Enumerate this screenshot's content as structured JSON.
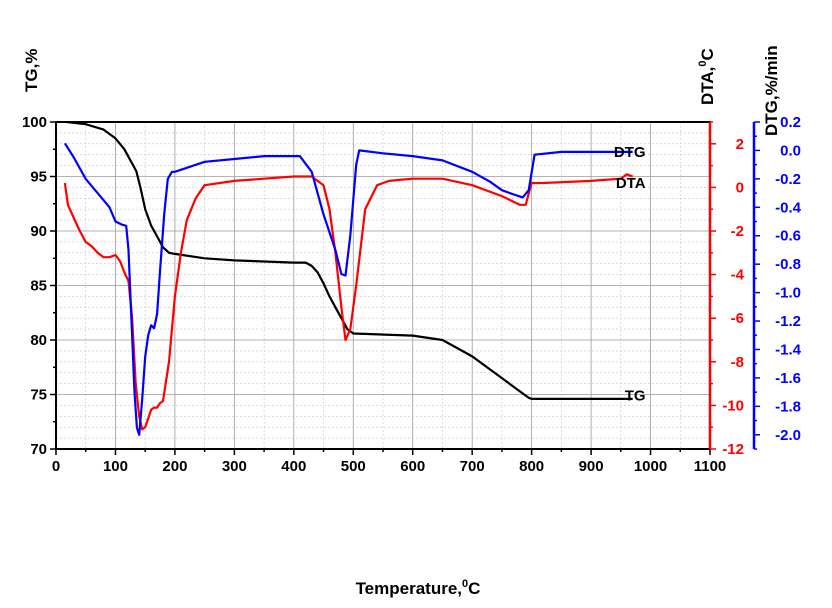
{
  "chart_data": {
    "type": "line",
    "xlabel": "Temperature,",
    "xlabel_sup": "0",
    "xlabel_unit": "C",
    "xlim": [
      0,
      1100
    ],
    "x_ticks": [
      0,
      100,
      200,
      300,
      400,
      500,
      600,
      700,
      800,
      900,
      1000,
      1100
    ],
    "grid": true,
    "axes": {
      "tg": {
        "label": "TG,%",
        "ylim": [
          70,
          100
        ],
        "ticks": [
          70,
          75,
          80,
          85,
          90,
          95,
          100
        ],
        "color": "#000000"
      },
      "dta": {
        "label": "DTA,",
        "label_sup": "0",
        "label_unit": "C",
        "ylim": [
          -12,
          3
        ],
        "ticks": [
          -12,
          -10,
          -8,
          -6,
          -4,
          -2,
          0,
          2
        ],
        "color": "#ff0000"
      },
      "dtg": {
        "label": "DTG,%/min",
        "ylim": [
          -2.1,
          0.2
        ],
        "ticks": [
          -2.0,
          -1.8,
          -1.6,
          -1.4,
          -1.2,
          -1.0,
          -0.8,
          -0.6,
          -0.4,
          -0.2,
          0.0,
          0.2
        ],
        "tick_labels": [
          "-2.0",
          "-1.8",
          "-1.6",
          "-1.4",
          "-1.2",
          "-1.0",
          "-0.8",
          "-0.6",
          "-0.4",
          "-0.2",
          "0.0",
          "0.2"
        ],
        "color": "#0000ff"
      }
    },
    "series": [
      {
        "name": "TG",
        "axis": "tg",
        "color": "#000000",
        "x": [
          18,
          50,
          80,
          100,
          115,
          125,
          135,
          142,
          150,
          160,
          170,
          180,
          190,
          200,
          250,
          300,
          350,
          400,
          420,
          430,
          440,
          450,
          460,
          470,
          480,
          490,
          500,
          600,
          650,
          700,
          750,
          780,
          795,
          800,
          970
        ],
        "values": [
          100,
          99.8,
          99.3,
          98.5,
          97.5,
          96.5,
          95.5,
          94,
          92,
          90.5,
          89.5,
          88.5,
          88,
          87.9,
          87.5,
          87.3,
          87.2,
          87.1,
          87.1,
          86.8,
          86.2,
          85.2,
          84,
          83,
          82,
          81,
          80.6,
          80.4,
          80,
          78.5,
          76.5,
          75.3,
          74.7,
          74.6,
          74.6
        ]
      },
      {
        "name": "DTA",
        "axis": "dta",
        "color": "#ff0000",
        "x": [
          15,
          20,
          30,
          40,
          50,
          60,
          70,
          80,
          90,
          100,
          108,
          115,
          122,
          128,
          134,
          140,
          145,
          150,
          155,
          160,
          165,
          170,
          175,
          180,
          190,
          200,
          210,
          220,
          235,
          250,
          300,
          350,
          400,
          430,
          450,
          460,
          470,
          480,
          487,
          495,
          505,
          520,
          540,
          560,
          600,
          650,
          700,
          750,
          780,
          790,
          800,
          820,
          900,
          950,
          960,
          970
        ],
        "values": [
          0.2,
          -0.8,
          -1.4,
          -2,
          -2.5,
          -2.7,
          -3.0,
          -3.2,
          -3.2,
          -3.1,
          -3.4,
          -3.9,
          -4.3,
          -6.0,
          -9.0,
          -10.5,
          -11.1,
          -11.0,
          -10.6,
          -10.2,
          -10.1,
          -10.1,
          -9.9,
          -9.8,
          -8.0,
          -5.0,
          -3.0,
          -1.5,
          -0.5,
          0.1,
          0.3,
          0.4,
          0.5,
          0.5,
          0.1,
          -1.0,
          -3.0,
          -5.5,
          -7.0,
          -6.5,
          -4.5,
          -1.0,
          0.1,
          0.3,
          0.4,
          0.4,
          0.1,
          -0.4,
          -0.8,
          -0.8,
          0.2,
          0.2,
          0.3,
          0.4,
          0.6,
          0.5
        ]
      },
      {
        "name": "DTG",
        "axis": "dtg",
        "color": "#0000ff",
        "x": [
          15,
          30,
          50,
          70,
          90,
          100,
          110,
          118,
          122,
          127,
          132,
          136,
          140,
          145,
          150,
          155,
          160,
          165,
          170,
          175,
          182,
          188,
          195,
          200,
          250,
          300,
          350,
          400,
          410,
          430,
          450,
          470,
          480,
          487,
          495,
          505,
          510,
          550,
          600,
          650,
          700,
          730,
          750,
          770,
          785,
          795,
          805,
          850,
          900,
          950,
          970
        ],
        "values": [
          0.05,
          -0.05,
          -0.2,
          -0.3,
          -0.4,
          -0.5,
          -0.52,
          -0.53,
          -0.7,
          -1.2,
          -1.7,
          -1.95,
          -2.0,
          -1.75,
          -1.45,
          -1.3,
          -1.23,
          -1.25,
          -1.15,
          -0.85,
          -0.45,
          -0.2,
          -0.15,
          -0.15,
          -0.08,
          -0.06,
          -0.04,
          -0.04,
          -0.04,
          -0.15,
          -0.45,
          -0.7,
          -0.87,
          -0.88,
          -0.6,
          -0.1,
          0.0,
          -0.02,
          -0.04,
          -0.07,
          -0.15,
          -0.22,
          -0.28,
          -0.31,
          -0.33,
          -0.28,
          -0.03,
          -0.01,
          -0.01,
          -0.01,
          -0.01
        ]
      }
    ],
    "series_labels": [
      {
        "text": "DTG",
        "x": 1000,
        "axis": "dtg",
        "y": -0.01
      },
      {
        "text": "DTA",
        "x": 1000,
        "axis": "dta",
        "y": 0.2
      },
      {
        "text": "TG",
        "x": 1000,
        "axis": "tg",
        "y": 74.9
      }
    ]
  }
}
